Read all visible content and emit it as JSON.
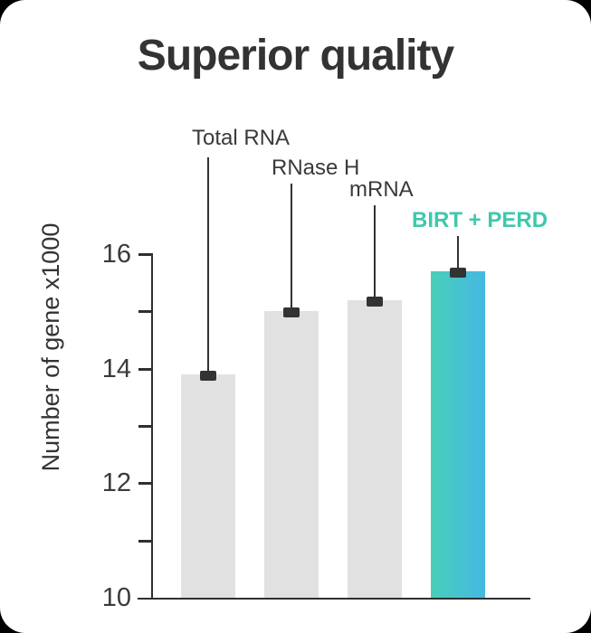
{
  "title": "Superior quality",
  "chart_data": {
    "type": "bar",
    "categories": [
      "Total RNA",
      "RNase H",
      "mRNA",
      "BIRT + PERD"
    ],
    "values": [
      13.9,
      15.0,
      15.2,
      15.7
    ],
    "title": "Superior quality",
    "xlabel": "",
    "ylabel": "Number of gene x1000",
    "ylim": [
      10,
      16
    ],
    "yticks_labeled": [
      10,
      12,
      14,
      16
    ],
    "yticks_all": [
      10,
      11,
      12,
      13,
      14,
      15,
      16
    ],
    "grid": false,
    "legend": false,
    "highlight_index": 3,
    "annotations": "callout line from each category label to a dark cap marker on top of its bar",
    "colors": {
      "bar_default": "#E1E1E1",
      "bar_highlight_gradient_left": "#49CFBA",
      "bar_highlight_gradient_right": "#44B8E2",
      "highlight_label": "#3FC8AB",
      "cap_marker": "#333333",
      "axis": "#2F2F2F",
      "text": "#333333",
      "card_background": "#FFFFFF",
      "backdrop": "#000000"
    }
  }
}
